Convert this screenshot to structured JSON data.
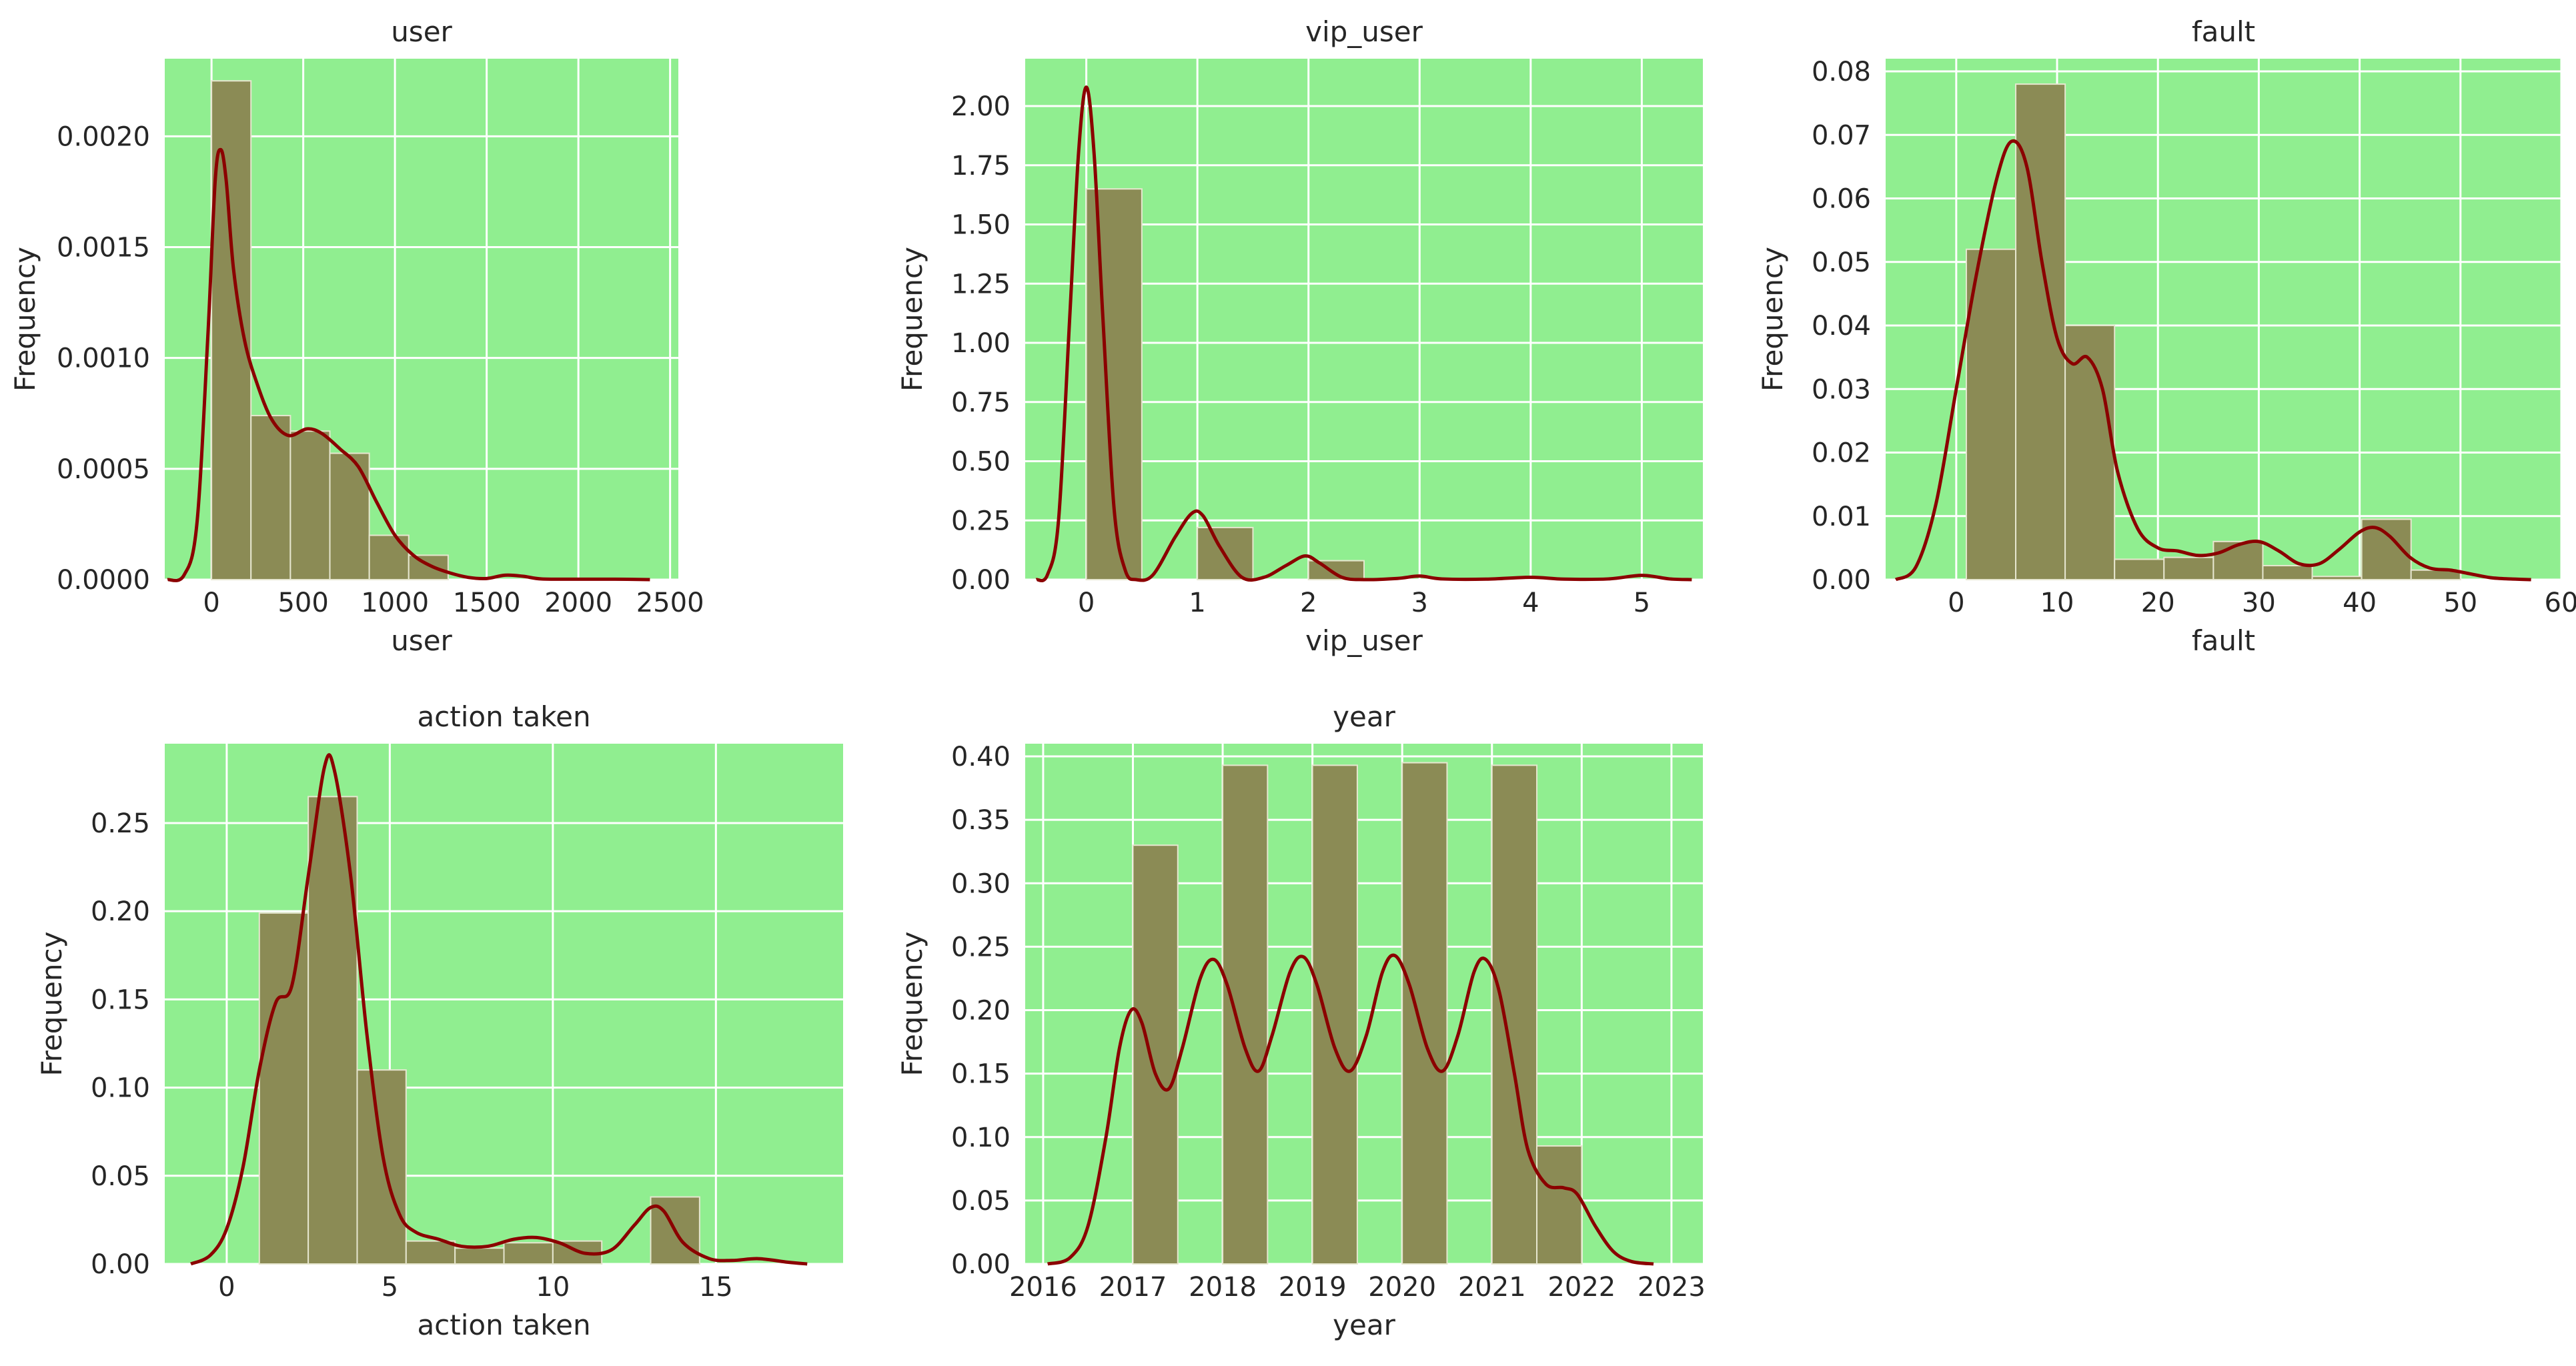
{
  "figure": {
    "colors": {
      "plot_bg": "#90ee90",
      "grid": "#ffffff",
      "bar_fill": "#8b8b55",
      "bar_edge": "#e6e6cf",
      "kde_line": "#8b0000",
      "text": "#262626"
    }
  },
  "chart_data": [
    {
      "type": "histogram",
      "title": "user",
      "xlabel": "user",
      "ylabel": "Frequency",
      "xlim": [
        -255,
        2545
      ],
      "ylim": [
        0,
        0.00235
      ],
      "xticks": [
        0,
        500,
        1000,
        1500,
        2000,
        2500
      ],
      "xtick_labels": [
        "0",
        "500",
        "1000",
        "1500",
        "2000",
        "2500"
      ],
      "yticks": [
        0,
        0.0005,
        0.001,
        0.0015,
        0.002
      ],
      "ytick_labels": [
        "0.0000",
        "0.0005",
        "0.0010",
        "0.0015",
        "0.0020"
      ],
      "grid": true,
      "bins": [
        {
          "x0": 0,
          "x1": 215,
          "value": 0.00225
        },
        {
          "x0": 215,
          "x1": 430,
          "value": 0.00074
        },
        {
          "x0": 430,
          "x1": 645,
          "value": 0.00067
        },
        {
          "x0": 645,
          "x1": 860,
          "value": 0.00057
        },
        {
          "x0": 860,
          "x1": 1075,
          "value": 0.0002
        },
        {
          "x0": 1075,
          "x1": 1290,
          "value": 0.00011
        }
      ],
      "kde": [
        [
          -240,
          0
        ],
        [
          -150,
          2e-05
        ],
        [
          -80,
          0.00025
        ],
        [
          -20,
          0.0011
        ],
        [
          20,
          0.0018
        ],
        [
          50,
          0.00194
        ],
        [
          80,
          0.0018
        ],
        [
          120,
          0.0014
        ],
        [
          180,
          0.00108
        ],
        [
          250,
          0.00088
        ],
        [
          330,
          0.00072
        ],
        [
          420,
          0.00065
        ],
        [
          520,
          0.00068
        ],
        [
          600,
          0.00066
        ],
        [
          700,
          0.00059
        ],
        [
          800,
          0.00051
        ],
        [
          900,
          0.00035
        ],
        [
          1000,
          0.0002
        ],
        [
          1100,
          0.00011
        ],
        [
          1200,
          6e-05
        ],
        [
          1300,
          3e-05
        ],
        [
          1400,
          1e-05
        ],
        [
          1500,
          5e-06
        ],
        [
          1600,
          2e-05
        ],
        [
          1700,
          1.5e-05
        ],
        [
          1800,
          3e-06
        ],
        [
          2000,
          2e-06
        ],
        [
          2200,
          2e-06
        ],
        [
          2390,
          0
        ]
      ]
    },
    {
      "type": "histogram",
      "title": "vip_user",
      "xlabel": "vip_user",
      "ylabel": "Frequency",
      "xlim": [
        -0.55,
        5.55
      ],
      "ylim": [
        0,
        2.2
      ],
      "xticks": [
        0,
        1,
        2,
        3,
        4,
        5
      ],
      "xtick_labels": [
        "0",
        "1",
        "2",
        "3",
        "4",
        "5"
      ],
      "yticks": [
        0,
        0.25,
        0.5,
        0.75,
        1.0,
        1.25,
        1.5,
        1.75,
        2.0
      ],
      "ytick_labels": [
        "0.00",
        "0.25",
        "0.50",
        "0.75",
        "1.00",
        "1.25",
        "1.50",
        "1.75",
        "2.00"
      ],
      "grid": true,
      "bins": [
        {
          "x0": 0,
          "x1": 0.5,
          "value": 1.65
        },
        {
          "x0": 0.5,
          "x1": 1.0,
          "value": 0.0
        },
        {
          "x0": 1.0,
          "x1": 1.5,
          "value": 0.22
        },
        {
          "x0": 1.5,
          "x1": 2.0,
          "value": 0.0
        },
        {
          "x0": 2.0,
          "x1": 2.5,
          "value": 0.08
        }
      ],
      "kde": [
        [
          -0.45,
          0
        ],
        [
          -0.35,
          0.02
        ],
        [
          -0.25,
          0.25
        ],
        [
          -0.15,
          1.1
        ],
        [
          -0.07,
          1.8
        ],
        [
          0,
          2.08
        ],
        [
          0.07,
          1.8
        ],
        [
          0.15,
          1.1
        ],
        [
          0.25,
          0.3
        ],
        [
          0.35,
          0.04
        ],
        [
          0.45,
          0.0
        ],
        [
          0.6,
          0.02
        ],
        [
          0.8,
          0.18
        ],
        [
          0.95,
          0.28
        ],
        [
          1.05,
          0.27
        ],
        [
          1.2,
          0.14
        ],
        [
          1.4,
          0.01
        ],
        [
          1.6,
          0.01
        ],
        [
          1.8,
          0.06
        ],
        [
          1.97,
          0.1
        ],
        [
          2.1,
          0.07
        ],
        [
          2.3,
          0.01
        ],
        [
          2.5,
          0.0
        ],
        [
          2.8,
          0.005
        ],
        [
          3.0,
          0.015
        ],
        [
          3.2,
          0.003
        ],
        [
          3.6,
          0.002
        ],
        [
          4.0,
          0.01
        ],
        [
          4.3,
          0.002
        ],
        [
          4.7,
          0.003
        ],
        [
          5.0,
          0.018
        ],
        [
          5.25,
          0.003
        ],
        [
          5.45,
          0
        ]
      ]
    },
    {
      "type": "histogram",
      "title": "fault",
      "xlabel": "fault",
      "ylabel": "Frequency",
      "xlim": [
        -7,
        60
      ],
      "ylim": [
        0,
        0.082
      ],
      "xticks": [
        0,
        10,
        20,
        30,
        40,
        50,
        60
      ],
      "xtick_labels": [
        "0",
        "10",
        "20",
        "30",
        "40",
        "50",
        "60"
      ],
      "yticks": [
        0,
        0.01,
        0.02,
        0.03,
        0.04,
        0.05,
        0.06,
        0.07,
        0.08
      ],
      "ytick_labels": [
        "0.00",
        "0.01",
        "0.02",
        "0.03",
        "0.04",
        "0.05",
        "0.06",
        "0.07",
        "0.08"
      ],
      "grid": true,
      "bins": [
        {
          "x0": 1,
          "x1": 5.9,
          "value": 0.052
        },
        {
          "x0": 5.9,
          "x1": 10.8,
          "value": 0.078
        },
        {
          "x0": 10.8,
          "x1": 15.7,
          "value": 0.04
        },
        {
          "x0": 15.7,
          "x1": 20.6,
          "value": 0.0032
        },
        {
          "x0": 20.6,
          "x1": 25.5,
          "value": 0.0035
        },
        {
          "x0": 25.5,
          "x1": 30.4,
          "value": 0.006
        },
        {
          "x0": 30.4,
          "x1": 35.3,
          "value": 0.0022
        },
        {
          "x0": 35.3,
          "x1": 40.2,
          "value": 0.0005
        },
        {
          "x0": 40.2,
          "x1": 45.1,
          "value": 0.0095
        },
        {
          "x0": 45.1,
          "x1": 50,
          "value": 0.0015
        }
      ],
      "kde": [
        [
          -6,
          0
        ],
        [
          -4,
          0.002
        ],
        [
          -2,
          0.012
        ],
        [
          0,
          0.03
        ],
        [
          2,
          0.048
        ],
        [
          4,
          0.063
        ],
        [
          5.5,
          0.069
        ],
        [
          7,
          0.065
        ],
        [
          8.5,
          0.05
        ],
        [
          10,
          0.038
        ],
        [
          11.5,
          0.034
        ],
        [
          13,
          0.035
        ],
        [
          14.5,
          0.03
        ],
        [
          16,
          0.017
        ],
        [
          18,
          0.008
        ],
        [
          20,
          0.005
        ],
        [
          22,
          0.0045
        ],
        [
          24,
          0.0038
        ],
        [
          26,
          0.0042
        ],
        [
          28,
          0.0055
        ],
        [
          30,
          0.006
        ],
        [
          32,
          0.0045
        ],
        [
          34,
          0.0025
        ],
        [
          36,
          0.0025
        ],
        [
          38,
          0.0048
        ],
        [
          40,
          0.0075
        ],
        [
          41.5,
          0.0082
        ],
        [
          43,
          0.0068
        ],
        [
          45,
          0.0035
        ],
        [
          47,
          0.0018
        ],
        [
          49,
          0.0015
        ],
        [
          51,
          0.0009
        ],
        [
          53,
          0.0003
        ],
        [
          55,
          0.0001
        ],
        [
          57,
          0
        ]
      ]
    },
    {
      "type": "histogram",
      "title": "action taken",
      "xlabel": "action taken",
      "ylabel": "Frequency",
      "xlim": [
        -1.9,
        18.9
      ],
      "ylim": [
        0,
        0.295
      ],
      "xticks": [
        0,
        5,
        10,
        15
      ],
      "xtick_labels": [
        "0",
        "5",
        "10",
        "15"
      ],
      "yticks": [
        0,
        0.05,
        0.1,
        0.15,
        0.2,
        0.25
      ],
      "ytick_labels": [
        "0.00",
        "0.05",
        "0.10",
        "0.15",
        "0.20",
        "0.25"
      ],
      "grid": true,
      "bins": [
        {
          "x0": 1,
          "x1": 2.5,
          "value": 0.199
        },
        {
          "x0": 2.5,
          "x1": 4,
          "value": 0.265
        },
        {
          "x0": 4,
          "x1": 5.5,
          "value": 0.11
        },
        {
          "x0": 5.5,
          "x1": 7,
          "value": 0.013
        },
        {
          "x0": 7,
          "x1": 8.5,
          "value": 0.009
        },
        {
          "x0": 8.5,
          "x1": 10,
          "value": 0.012
        },
        {
          "x0": 10,
          "x1": 11.5,
          "value": 0.013
        },
        {
          "x0": 11.5,
          "x1": 13,
          "value": 0.0
        },
        {
          "x0": 13,
          "x1": 14.5,
          "value": 0.038
        }
      ],
      "kde": [
        [
          -1.1,
          0
        ],
        [
          -0.5,
          0.005
        ],
        [
          0,
          0.02
        ],
        [
          0.5,
          0.055
        ],
        [
          1,
          0.11
        ],
        [
          1.5,
          0.148
        ],
        [
          2,
          0.158
        ],
        [
          2.5,
          0.22
        ],
        [
          3,
          0.282
        ],
        [
          3.3,
          0.28
        ],
        [
          3.8,
          0.22
        ],
        [
          4.3,
          0.13
        ],
        [
          4.8,
          0.06
        ],
        [
          5.3,
          0.028
        ],
        [
          5.8,
          0.018
        ],
        [
          6.5,
          0.014
        ],
        [
          7.2,
          0.01
        ],
        [
          8,
          0.01
        ],
        [
          8.8,
          0.014
        ],
        [
          9.5,
          0.015
        ],
        [
          10.2,
          0.012
        ],
        [
          11,
          0.006
        ],
        [
          11.8,
          0.008
        ],
        [
          12.5,
          0.022
        ],
        [
          13,
          0.032
        ],
        [
          13.4,
          0.03
        ],
        [
          14,
          0.012
        ],
        [
          14.8,
          0.003
        ],
        [
          15.5,
          0.002
        ],
        [
          16.3,
          0.003
        ],
        [
          17.2,
          0.001
        ],
        [
          17.8,
          0
        ]
      ]
    },
    {
      "type": "histogram",
      "title": "year",
      "xlabel": "year",
      "ylabel": "Frequency",
      "xlim": [
        2015.8,
        2023.35
      ],
      "ylim": [
        0,
        0.41
      ],
      "xticks": [
        2016,
        2017,
        2018,
        2019,
        2020,
        2021,
        2022,
        2023
      ],
      "xtick_labels": [
        "2016",
        "2017",
        "2018",
        "2019",
        "2020",
        "2021",
        "2022",
        "2023"
      ],
      "yticks": [
        0,
        0.05,
        0.1,
        0.15,
        0.2,
        0.25,
        0.3,
        0.35,
        0.4
      ],
      "ytick_labels": [
        "0.00",
        "0.05",
        "0.10",
        "0.15",
        "0.20",
        "0.25",
        "0.30",
        "0.35",
        "0.40"
      ],
      "grid": true,
      "bins": [
        {
          "x0": 2017,
          "x1": 2017.5,
          "value": 0.33
        },
        {
          "x0": 2017.5,
          "x1": 2018,
          "value": 0.0
        },
        {
          "x0": 2018,
          "x1": 2018.5,
          "value": 0.393
        },
        {
          "x0": 2018.5,
          "x1": 2019,
          "value": 0.0
        },
        {
          "x0": 2019,
          "x1": 2019.5,
          "value": 0.393
        },
        {
          "x0": 2019.5,
          "x1": 2020,
          "value": 0.0
        },
        {
          "x0": 2020,
          "x1": 2020.5,
          "value": 0.395
        },
        {
          "x0": 2020.5,
          "x1": 2021,
          "value": 0.0
        },
        {
          "x0": 2021,
          "x1": 2021.5,
          "value": 0.393
        },
        {
          "x0": 2021.5,
          "x1": 2022,
          "value": 0.093
        }
      ],
      "kde": [
        [
          2016.05,
          0
        ],
        [
          2016.3,
          0.005
        ],
        [
          2016.5,
          0.03
        ],
        [
          2016.7,
          0.1
        ],
        [
          2016.85,
          0.17
        ],
        [
          2016.98,
          0.2
        ],
        [
          2017.1,
          0.19
        ],
        [
          2017.25,
          0.15
        ],
        [
          2017.4,
          0.138
        ],
        [
          2017.55,
          0.17
        ],
        [
          2017.75,
          0.225
        ],
        [
          2017.9,
          0.24
        ],
        [
          2018.05,
          0.22
        ],
        [
          2018.25,
          0.17
        ],
        [
          2018.4,
          0.152
        ],
        [
          2018.55,
          0.18
        ],
        [
          2018.75,
          0.23
        ],
        [
          2018.9,
          0.242
        ],
        [
          2019.05,
          0.22
        ],
        [
          2019.25,
          0.17
        ],
        [
          2019.42,
          0.152
        ],
        [
          2019.6,
          0.18
        ],
        [
          2019.78,
          0.23
        ],
        [
          2019.92,
          0.243
        ],
        [
          2020.08,
          0.22
        ],
        [
          2020.28,
          0.17
        ],
        [
          2020.45,
          0.152
        ],
        [
          2020.62,
          0.18
        ],
        [
          2020.8,
          0.23
        ],
        [
          2020.93,
          0.24
        ],
        [
          2021.08,
          0.215
        ],
        [
          2021.25,
          0.15
        ],
        [
          2021.4,
          0.09
        ],
        [
          2021.6,
          0.063
        ],
        [
          2021.8,
          0.06
        ],
        [
          2021.95,
          0.055
        ],
        [
          2022.15,
          0.03
        ],
        [
          2022.35,
          0.01
        ],
        [
          2022.55,
          0.002
        ],
        [
          2022.8,
          0
        ]
      ]
    }
  ]
}
